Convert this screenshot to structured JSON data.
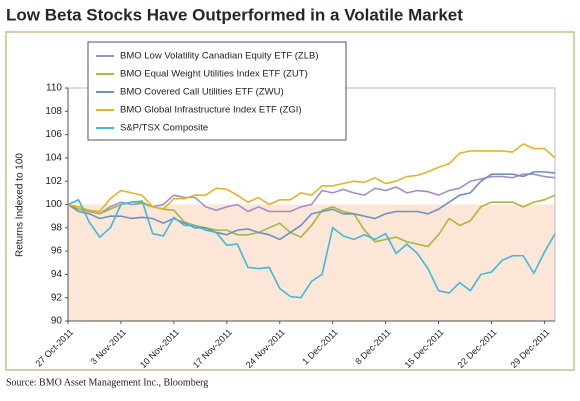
{
  "chart_data": {
    "type": "line",
    "title": "Low Beta Stocks Have Outperformed in a Volatile Market",
    "y_label": "Returns Indexed to 100",
    "source": "Source: BMO Asset Management Inc., Bloomberg",
    "categories": [
      "27 Oct-2011",
      null,
      null,
      null,
      null,
      "3 Nov-2011",
      null,
      null,
      null,
      null,
      "10 Nov-2011",
      null,
      null,
      null,
      null,
      "17 Nov-2011",
      null,
      null,
      null,
      null,
      "24 Nov-2011",
      null,
      null,
      null,
      null,
      "1 Dec-2011",
      null,
      null,
      null,
      null,
      "8 Dec-2011",
      null,
      null,
      null,
      null,
      "15 Dec-2011",
      null,
      null,
      null,
      null,
      "22 Dec-2011",
      null,
      null,
      null,
      null,
      "29 Dec-2011",
      null
    ],
    "ylim": [
      90,
      110
    ],
    "yticks": [
      90,
      92,
      94,
      96,
      98,
      100,
      102,
      104,
      106,
      108,
      110
    ],
    "baseline": 100,
    "shade_color": "#fce6d8",
    "series": [
      {
        "name": "BMO Low Volatility Canadian Equity ETF (ZLB)",
        "color": "#9b92c8",
        "values": [
          100,
          99.6,
          99.4,
          99.2,
          99.8,
          100.2,
          100,
          100.1,
          99.8,
          100,
          100.8,
          100.6,
          100.6,
          99.8,
          99.5,
          99.8,
          100,
          99.4,
          99.8,
          99.4,
          99.4,
          99.4,
          99.8,
          100,
          101.2,
          101,
          101.3,
          101,
          100.8,
          101.4,
          101.2,
          101.5,
          101,
          101.2,
          101.1,
          100.8,
          101.2,
          101.4,
          102,
          102.2,
          102.4,
          102.4,
          102.3,
          102.6,
          102.6,
          102.4,
          102.3
        ]
      },
      {
        "name": "BMO Equal Weight Utilities Index ETF (ZUT)",
        "color": "#a9b83c",
        "values": [
          100,
          99.6,
          99.5,
          99.2,
          99.6,
          100,
          100.2,
          100.2,
          99.8,
          99.6,
          99.5,
          98.5,
          98.2,
          98,
          97.8,
          97.8,
          97.4,
          97.4,
          97.6,
          98,
          98.4,
          97.6,
          97.2,
          98.2,
          99.5,
          99.8,
          99.4,
          99.2,
          97.8,
          96.8,
          97,
          97.2,
          96.8,
          96.6,
          96.4,
          97.4,
          98.8,
          98.2,
          98.6,
          99.8,
          100.2,
          100.2,
          100.2,
          99.8,
          100.2,
          100.4,
          100.8
        ]
      },
      {
        "name": "BMO Covered Call Utilities ETF (ZWU)",
        "color": "#7090c0",
        "values": [
          100,
          99.4,
          99.2,
          98.8,
          99,
          99,
          98.8,
          98.9,
          98.8,
          98.4,
          98.8,
          98.4,
          98,
          98,
          97.6,
          97.4,
          97.8,
          97.9,
          97.6,
          97.4,
          97,
          97.6,
          98.2,
          99.2,
          99.4,
          99.6,
          99.2,
          99.2,
          99,
          98.8,
          99.2,
          99.4,
          99.4,
          99.4,
          99.2,
          99.6,
          100.2,
          100.8,
          101,
          102,
          102.6,
          102.6,
          102.6,
          102.4,
          102.8,
          102.8,
          102.7
        ]
      },
      {
        "name": "BMO Global Infrastructure  Index ETF (ZGI)",
        "color": "#e8b222",
        "values": [
          100,
          99.8,
          99.5,
          99.4,
          100.5,
          101.2,
          101,
          100.8,
          99.8,
          99.6,
          100.5,
          100.5,
          100.8,
          100.8,
          101.4,
          101.3,
          100.8,
          100.2,
          100.6,
          100,
          100.4,
          100.4,
          101,
          100.8,
          101.6,
          101.6,
          101.8,
          102,
          101.9,
          102.3,
          101.8,
          102,
          102.4,
          102.5,
          102.8,
          103.2,
          103.5,
          104.4,
          104.6,
          104.6,
          104.6,
          104.6,
          104.5,
          105.2,
          104.8,
          104.8,
          104
        ]
      },
      {
        "name": "S&P/TSX Composite",
        "color": "#3dbbd9",
        "values": [
          100,
          100.4,
          98.5,
          97.2,
          98,
          100,
          100.2,
          100.3,
          97.5,
          97.3,
          98.9,
          98.2,
          98.2,
          97.8,
          97.6,
          96.5,
          96.6,
          94.6,
          94.5,
          94.6,
          92.8,
          92.1,
          92,
          93.4,
          94,
          98,
          97.3,
          97,
          97.4,
          97,
          97.5,
          95.8,
          96.6,
          95.8,
          94.5,
          92.6,
          92.4,
          93.3,
          92.6,
          94,
          94.2,
          95.2,
          95.6,
          95.6,
          94.1,
          95.9,
          97.5
        ]
      }
    ]
  }
}
